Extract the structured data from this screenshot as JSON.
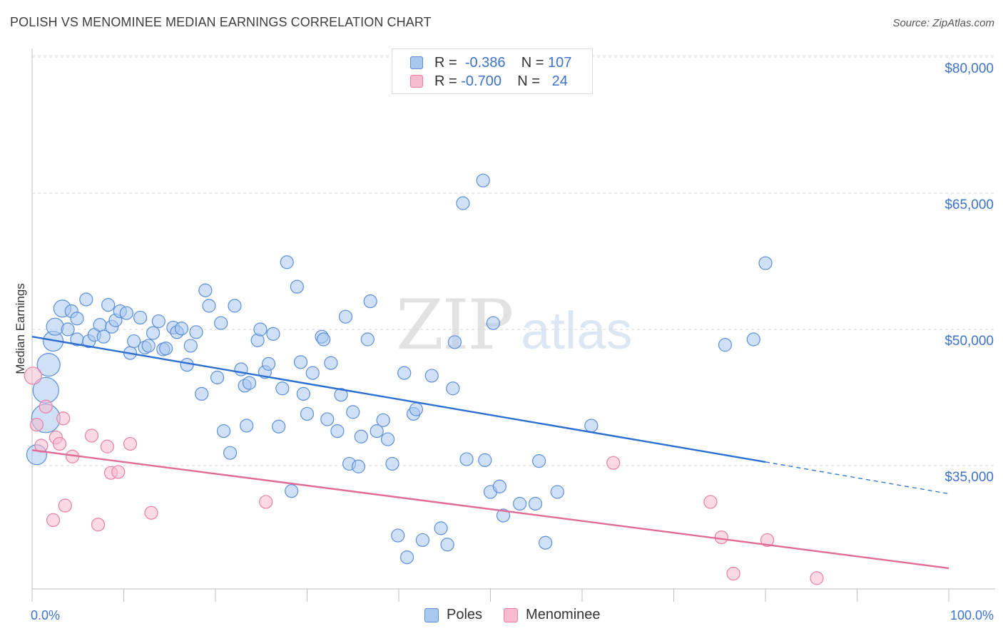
{
  "header": {
    "title": "POLISH VS MENOMINEE MEDIAN EARNINGS CORRELATION CHART",
    "source": "Source: ZipAtlas.com"
  },
  "legend": {
    "rows": [
      {
        "r_label": "R =",
        "r_value": "-0.386",
        "n_label": "N =",
        "n_value": "107"
      },
      {
        "r_label": "R =",
        "r_value": "-0.700",
        "n_label": "N =",
        "n_value": " 24"
      }
    ]
  },
  "watermark": {
    "zip": "ZIP",
    "atlas": "atlas"
  },
  "colors": {
    "poles_fill": "#a9c8f0",
    "poles_stroke": "#5b8fd9",
    "poles_line": "#2a6fd1",
    "menominee_fill": "#f7bcd0",
    "menominee_stroke": "#e87fa3",
    "menominee_line": "#e06b97",
    "axis_text": "#3d72c9",
    "grid": "#d9d9d9"
  },
  "chart_data": {
    "type": "scatter",
    "title": "POLISH VS MENOMINEE MEDIAN EARNINGS CORRELATION CHART",
    "xlabel": "",
    "ylabel": "Median Earnings",
    "xlim": [
      0,
      100
    ],
    "ylim": [
      19000,
      82000
    ],
    "x_tick_labels": [
      "0.0%",
      "100.0%"
    ],
    "y_ticks": [
      35000,
      50000,
      65000,
      80000
    ],
    "y_tick_labels": [
      "$35,000",
      "$50,000",
      "$65,000",
      "$80,000"
    ],
    "grid": true,
    "legend_position": "top-center",
    "series": [
      {
        "name": "Poles",
        "color": "#a9c8f0",
        "trend": {
          "x_start": 0,
          "y_start": 49200,
          "x_end": 80,
          "y_end": 35400,
          "dashed_to_x": 100,
          "dashed_to_y": 31900
        },
        "points": [
          [
            0.5,
            36200,
            14
          ],
          [
            1.5,
            40200,
            20
          ],
          [
            1.5,
            43300,
            18
          ],
          [
            1.8,
            46100,
            16
          ],
          [
            2.3,
            48700,
            14
          ],
          [
            2.5,
            50300,
            12
          ],
          [
            3.3,
            52300,
            12
          ],
          [
            3.9,
            50000,
            9
          ],
          [
            4.3,
            52000,
            9
          ],
          [
            4.9,
            51200,
            9
          ],
          [
            4.9,
            48900,
            9
          ],
          [
            5.9,
            53300,
            9
          ],
          [
            6.2,
            48700,
            9
          ],
          [
            6.8,
            49400,
            9
          ],
          [
            7.4,
            50500,
            9
          ],
          [
            7.8,
            49200,
            9
          ],
          [
            8.3,
            52700,
            9
          ],
          [
            8.7,
            50300,
            9
          ],
          [
            9.1,
            51000,
            9
          ],
          [
            9.6,
            52000,
            9
          ],
          [
            10.3,
            51800,
            9
          ],
          [
            10.7,
            47400,
            9
          ],
          [
            11.1,
            48700,
            9
          ],
          [
            11.8,
            51300,
            9
          ],
          [
            12.3,
            48000,
            9
          ],
          [
            12.7,
            48200,
            9
          ],
          [
            13.2,
            49600,
            9
          ],
          [
            13.8,
            50900,
            9
          ],
          [
            14.3,
            47800,
            9
          ],
          [
            14.6,
            47900,
            9
          ],
          [
            15.4,
            50200,
            9
          ],
          [
            15.8,
            49700,
            9
          ],
          [
            16.3,
            50100,
            9
          ],
          [
            16.9,
            46100,
            9
          ],
          [
            17.3,
            48200,
            9
          ],
          [
            17.9,
            49700,
            9
          ],
          [
            18.5,
            42900,
            9
          ],
          [
            18.9,
            54300,
            9
          ],
          [
            19.3,
            52600,
            9
          ],
          [
            20.2,
            44700,
            9
          ],
          [
            20.6,
            50700,
            9
          ],
          [
            20.9,
            38800,
            9
          ],
          [
            21.6,
            36400,
            9
          ],
          [
            22.1,
            52600,
            9
          ],
          [
            22.8,
            45600,
            9
          ],
          [
            23.2,
            43800,
            9
          ],
          [
            23.4,
            39400,
            9
          ],
          [
            23.7,
            44100,
            9
          ],
          [
            24.6,
            48800,
            9
          ],
          [
            24.9,
            50000,
            9
          ],
          [
            25.4,
            45300,
            9
          ],
          [
            25.8,
            46200,
            9
          ],
          [
            26.3,
            49500,
            9
          ],
          [
            26.9,
            39300,
            9
          ],
          [
            27.3,
            43500,
            9
          ],
          [
            27.8,
            57400,
            9
          ],
          [
            28.3,
            32200,
            9
          ],
          [
            28.9,
            54700,
            9
          ],
          [
            29.3,
            46400,
            9
          ],
          [
            29.6,
            42900,
            9
          ],
          [
            30.0,
            40700,
            9
          ],
          [
            30.6,
            45200,
            9
          ],
          [
            31.6,
            49200,
            9
          ],
          [
            31.8,
            48900,
            9
          ],
          [
            32.2,
            40100,
            9
          ],
          [
            32.6,
            46300,
            9
          ],
          [
            33.3,
            38800,
            9
          ],
          [
            33.7,
            42800,
            9
          ],
          [
            34.2,
            51400,
            9
          ],
          [
            34.6,
            35200,
            9
          ],
          [
            35.0,
            40900,
            9
          ],
          [
            35.6,
            34900,
            9
          ],
          [
            35.9,
            38200,
            9
          ],
          [
            36.6,
            48900,
            9
          ],
          [
            36.9,
            53100,
            9
          ],
          [
            37.6,
            38800,
            9
          ],
          [
            38.3,
            40000,
            9
          ],
          [
            38.8,
            37900,
            9
          ],
          [
            39.3,
            35200,
            9
          ],
          [
            39.9,
            27300,
            9
          ],
          [
            40.6,
            45200,
            9
          ],
          [
            40.9,
            24900,
            9
          ],
          [
            41.6,
            40700,
            9
          ],
          [
            41.9,
            41200,
            9
          ],
          [
            42.6,
            26800,
            9
          ],
          [
            43.6,
            44900,
            9
          ],
          [
            44.6,
            28100,
            9
          ],
          [
            45.3,
            26300,
            9
          ],
          [
            45.9,
            43500,
            9
          ],
          [
            46.1,
            48600,
            9
          ],
          [
            47.0,
            63900,
            9
          ],
          [
            47.4,
            35700,
            9
          ],
          [
            49.2,
            66400,
            9
          ],
          [
            49.4,
            35600,
            9
          ],
          [
            50.0,
            32100,
            9
          ],
          [
            50.3,
            50700,
            9
          ],
          [
            51.0,
            32700,
            9
          ],
          [
            51.4,
            29500,
            9
          ],
          [
            53.2,
            30800,
            9
          ],
          [
            54.9,
            30800,
            9
          ],
          [
            55.3,
            35500,
            9
          ],
          [
            56.0,
            26500,
            9
          ],
          [
            57.3,
            32100,
            9
          ],
          [
            61.0,
            39400,
            9
          ],
          [
            75.6,
            48300,
            9
          ],
          [
            78.7,
            48900,
            9
          ],
          [
            80.0,
            57300,
            9
          ]
        ]
      },
      {
        "name": "Menominee",
        "color": "#f7bcd0",
        "trend": {
          "x_start": 0,
          "y_start": 36700,
          "x_end": 100,
          "y_end": 23700
        },
        "points": [
          [
            0.1,
            44900,
            12
          ],
          [
            0.5,
            39500,
            9
          ],
          [
            1.0,
            37200,
            9
          ],
          [
            1.5,
            41500,
            9
          ],
          [
            2.3,
            29000,
            9
          ],
          [
            2.6,
            38100,
            9
          ],
          [
            3.0,
            37400,
            9
          ],
          [
            3.4,
            40200,
            9
          ],
          [
            3.6,
            30600,
            9
          ],
          [
            4.4,
            36000,
            9
          ],
          [
            6.5,
            38300,
            9
          ],
          [
            7.2,
            28500,
            9
          ],
          [
            8.2,
            37100,
            9
          ],
          [
            8.6,
            34200,
            9
          ],
          [
            9.4,
            34300,
            9
          ],
          [
            10.7,
            37400,
            9
          ],
          [
            13.0,
            29800,
            9
          ],
          [
            25.5,
            31000,
            9
          ],
          [
            63.4,
            35300,
            9
          ],
          [
            74.0,
            31000,
            9
          ],
          [
            75.2,
            27100,
            9
          ],
          [
            76.5,
            23100,
            9
          ],
          [
            80.2,
            26800,
            9
          ],
          [
            85.6,
            22600,
            9
          ]
        ]
      }
    ]
  }
}
